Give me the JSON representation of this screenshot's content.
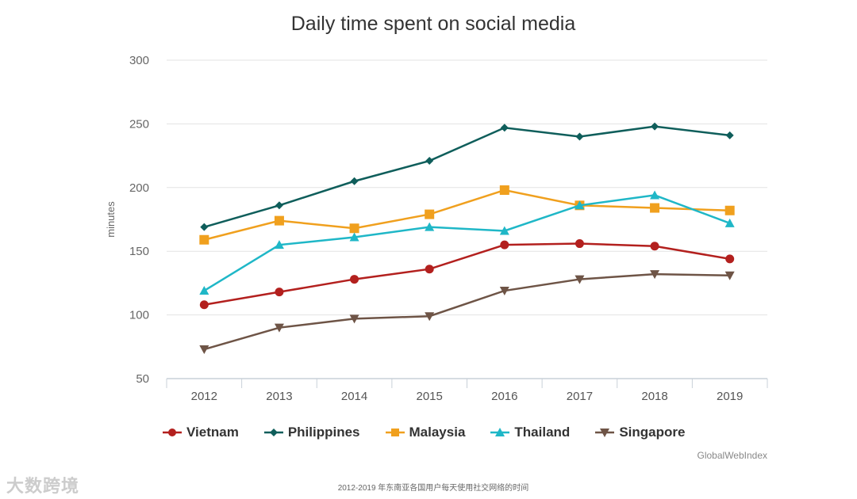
{
  "chart_data": {
    "type": "line",
    "title": "Daily time spent on social media",
    "xlabel": "",
    "ylabel": "minutes",
    "ylim": [
      50,
      300
    ],
    "yticks": [
      50,
      100,
      150,
      200,
      250,
      300
    ],
    "grid": true,
    "legend_placement": "bottom",
    "categories": [
      "2012",
      "2013",
      "2014",
      "2015",
      "2016",
      "2017",
      "2018",
      "2019"
    ],
    "series": [
      {
        "name": "Vietnam",
        "color": "#b3201e",
        "marker": "circle",
        "values": [
          108,
          118,
          128,
          136,
          155,
          156,
          154,
          144
        ]
      },
      {
        "name": "Philippines",
        "color": "#0f5e5b",
        "marker": "diamond",
        "values": [
          169,
          186,
          205,
          221,
          247,
          240,
          248,
          241
        ]
      },
      {
        "name": "Malaysia",
        "color": "#f0a01e",
        "marker": "square",
        "values": [
          159,
          174,
          168,
          179,
          198,
          186,
          184,
          182
        ]
      },
      {
        "name": "Thailand",
        "color": "#1fb7c7",
        "marker": "triangle-up",
        "values": [
          119,
          155,
          161,
          169,
          166,
          186,
          194,
          172
        ]
      },
      {
        "name": "Singapore",
        "color": "#6e5446",
        "marker": "triangle-down",
        "values": [
          73,
          90,
          97,
          99,
          119,
          128,
          132,
          131
        ]
      }
    ],
    "source": "GlobalWebIndex"
  },
  "caption": "2012-2019 年东南亚各国用户每天使用社交网络的时间",
  "watermark": "大数跨境"
}
